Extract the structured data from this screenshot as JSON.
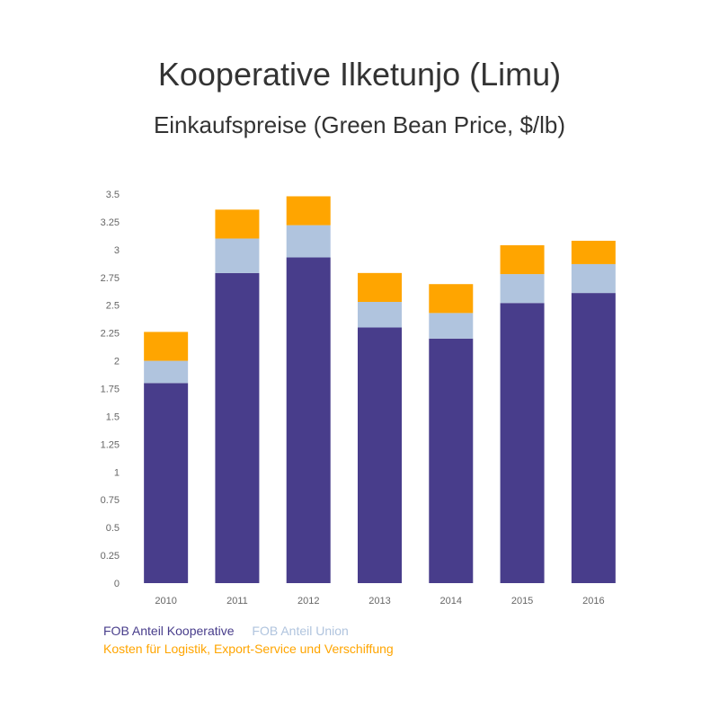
{
  "chart_data": {
    "type": "bar",
    "stacked": true,
    "title": "Kooperative Ilketunjo (Limu)",
    "subtitle": "Einkaufspreise (Green Bean Price, $/lb)",
    "categories": [
      "2010",
      "2011",
      "2012",
      "2013",
      "2014",
      "2015",
      "2016"
    ],
    "ylim": [
      0,
      3.5
    ],
    "yticks": [
      0,
      0.25,
      0.5,
      0.75,
      1,
      1.25,
      1.5,
      1.75,
      2,
      2.25,
      2.5,
      2.75,
      3,
      3.25,
      3.5
    ],
    "ytick_labels": [
      "0",
      "0.25",
      "0.5",
      "0.75",
      "1",
      "1.25",
      "1.5",
      "1.75",
      "2",
      "2.25",
      "2.5",
      "2.75",
      "3",
      "3.25",
      "3.5"
    ],
    "grid": false,
    "legend_position": "bottom-left",
    "series": [
      {
        "name": "FOB Anteil Kooperative",
        "color": "#483d8b",
        "values": [
          1.8,
          2.79,
          2.93,
          2.3,
          2.2,
          2.52,
          2.61
        ]
      },
      {
        "name": "FOB Anteil Union",
        "color": "#b0c4de",
        "values": [
          0.2,
          0.31,
          0.29,
          0.23,
          0.23,
          0.26,
          0.26
        ]
      },
      {
        "name": "Kosten für Logistik, Export-Service und Verschiffung",
        "color": "#ffa500",
        "values": [
          0.26,
          0.26,
          0.26,
          0.26,
          0.26,
          0.26,
          0.21
        ]
      }
    ]
  }
}
